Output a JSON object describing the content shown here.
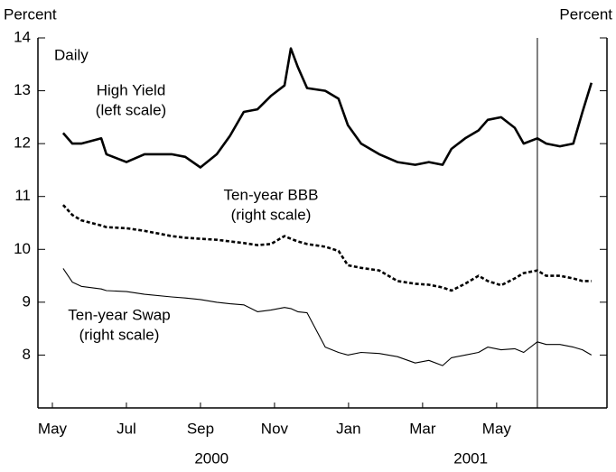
{
  "chart_data": {
    "type": "line",
    "left_axis_label": "Percent",
    "right_axis_label": "Percent",
    "frequency_note": "Daily",
    "x": [
      0.29,
      0.54,
      0.78,
      1.32,
      1.46,
      2,
      2.49,
      3.22,
      3.59,
      4,
      4.44,
      4.8,
      5.17,
      5.54,
      5.9,
      6.27,
      6.44,
      6.63,
      6.88,
      7.37,
      7.73,
      7.98,
      8.34,
      8.83,
      9.32,
      9.8,
      10.17,
      10.54,
      10.78,
      11.15,
      11.51,
      11.76,
      12.12,
      12.49,
      12.73,
      13.1,
      13.34,
      13.71,
      14.07,
      14.32,
      14.56
    ],
    "series": [
      {
        "name": "High Yield",
        "scale_note": "(left scale)",
        "color": "#000000",
        "style": "thick",
        "values": [
          12.2,
          12.0,
          12.0,
          12.1,
          11.8,
          11.65,
          11.8,
          11.8,
          11.75,
          11.55,
          11.8,
          12.15,
          12.6,
          12.65,
          12.9,
          13.1,
          13.8,
          13.45,
          13.05,
          13.0,
          12.85,
          12.35,
          12.0,
          11.8,
          11.65,
          11.6,
          11.65,
          11.6,
          11.9,
          12.1,
          12.25,
          12.45,
          12.5,
          12.3,
          12.0,
          12.1,
          12.0,
          11.95,
          12.0,
          12.6,
          13.15
        ]
      },
      {
        "name": "Ten-year BBB",
        "scale_note": "(right scale)",
        "color": "#000000",
        "style": "dashed",
        "values": [
          10.84,
          10.65,
          10.55,
          10.45,
          10.42,
          10.4,
          10.35,
          10.25,
          10.22,
          10.2,
          10.18,
          10.15,
          10.12,
          10.08,
          10.1,
          10.25,
          10.2,
          10.15,
          10.1,
          10.05,
          9.97,
          9.7,
          9.65,
          9.6,
          9.4,
          9.35,
          9.33,
          9.28,
          9.22,
          9.35,
          9.5,
          9.4,
          9.32,
          9.45,
          9.55,
          9.6,
          9.5,
          9.5,
          9.45,
          9.4,
          9.4
        ]
      },
      {
        "name": "Ten-year Swap",
        "scale_note": "(right scale)",
        "color": "#000000",
        "style": "thin",
        "values": [
          9.64,
          9.38,
          9.3,
          9.25,
          9.22,
          9.2,
          9.15,
          9.1,
          9.08,
          9.05,
          9.0,
          8.97,
          8.95,
          8.82,
          8.85,
          8.9,
          8.88,
          8.82,
          8.8,
          8.15,
          8.05,
          8.0,
          8.05,
          8.03,
          7.97,
          7.85,
          7.9,
          7.8,
          7.95,
          8.0,
          8.05,
          8.15,
          8.1,
          8.12,
          8.05,
          8.25,
          8.2,
          8.2,
          8.15,
          8.1,
          8.0
        ]
      }
    ],
    "xlim": [
      -0.39,
      14.98
    ],
    "xticks": [
      {
        "value": 0,
        "label": "May"
      },
      {
        "value": 2,
        "label": "Jul"
      },
      {
        "value": 4,
        "label": "Sep"
      },
      {
        "value": 6,
        "label": "Nov"
      },
      {
        "value": 8,
        "label": "Jan"
      },
      {
        "value": 10,
        "label": "Mar"
      },
      {
        "value": 12,
        "label": "May"
      }
    ],
    "x_year_labels": [
      {
        "value": 4.3,
        "label": "2000"
      },
      {
        "value": 11.3,
        "label": "2001"
      }
    ],
    "vertical_line_x": 13.1,
    "ylim": [
      7,
      14
    ],
    "yticks": [
      8,
      9,
      10,
      11,
      12,
      13,
      14
    ]
  }
}
